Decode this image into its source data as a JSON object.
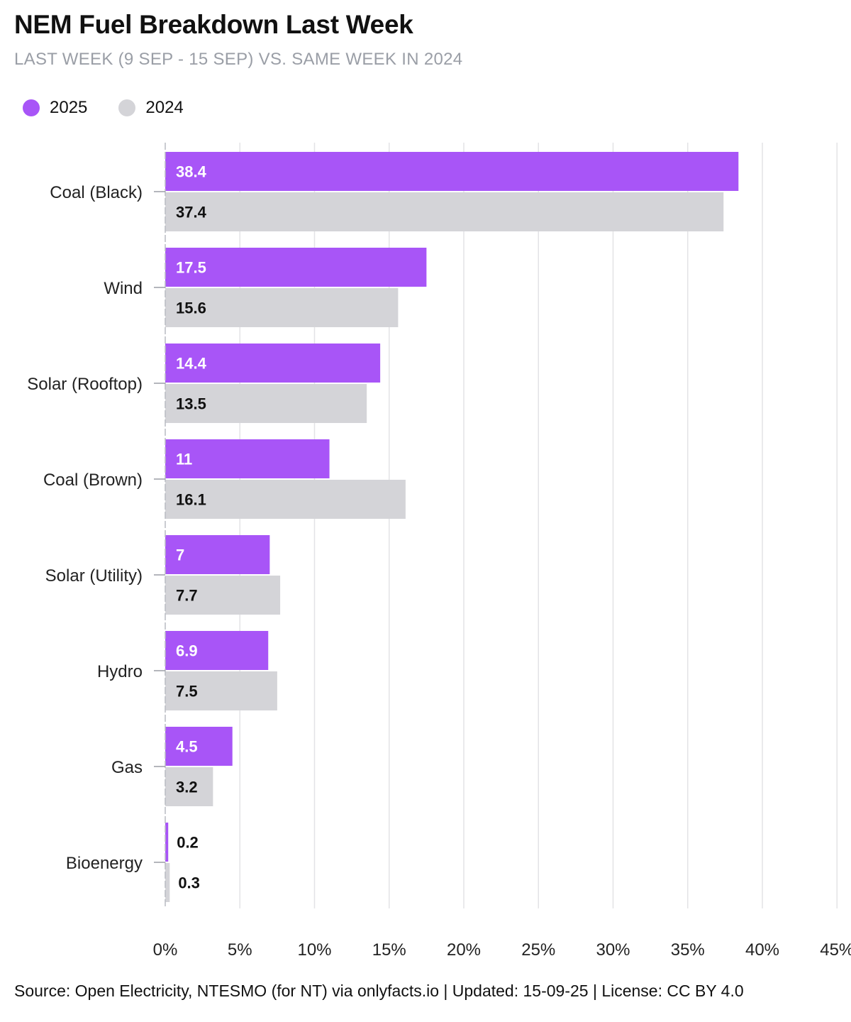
{
  "header": {
    "title": "NEM Fuel Breakdown Last Week",
    "subtitle": "LAST WEEK (9 SEP - 15 SEP) VS. SAME WEEK IN 2024"
  },
  "footer": {
    "source": "Source: Open Electricity, NTESMO (for NT) via onlyfacts.io | Updated: 15-09-25 | License: CC BY 4.0"
  },
  "chart_data": {
    "type": "bar",
    "orientation": "horizontal",
    "title": "NEM Fuel Breakdown Last Week",
    "subtitle": "LAST WEEK (9 SEP - 15 SEP) VS. SAME WEEK IN 2024",
    "categories": [
      "Coal (Black)",
      "Wind",
      "Solar (Rooftop)",
      "Coal (Brown)",
      "Solar (Utility)",
      "Hydro",
      "Gas",
      "Bioenergy"
    ],
    "series": [
      {
        "name": "2025",
        "color": "#a855f7",
        "values": [
          38.4,
          17.5,
          14.4,
          11,
          7,
          6.9,
          4.5,
          0.2
        ]
      },
      {
        "name": "2024",
        "color": "#d4d4d8",
        "values": [
          37.4,
          15.6,
          13.5,
          16.1,
          7.7,
          7.5,
          3.2,
          0.3
        ]
      }
    ],
    "value_labels": [
      [
        "38.4",
        "17.5",
        "14.4",
        "11",
        "7",
        "6.9",
        "4.5",
        "0.2"
      ],
      [
        "37.4",
        "15.6",
        "13.5",
        "16.1",
        "7.7",
        "7.5",
        "3.2",
        "0.3"
      ]
    ],
    "xlim": [
      0,
      45
    ],
    "x_ticks": [
      0,
      5,
      10,
      15,
      20,
      25,
      30,
      35,
      40,
      45
    ],
    "x_tick_labels": [
      "0%",
      "5%",
      "10%",
      "15%",
      "20%",
      "25%",
      "30%",
      "35%",
      "40%",
      "45%"
    ],
    "grid": true,
    "legend_position": "top-left"
  }
}
